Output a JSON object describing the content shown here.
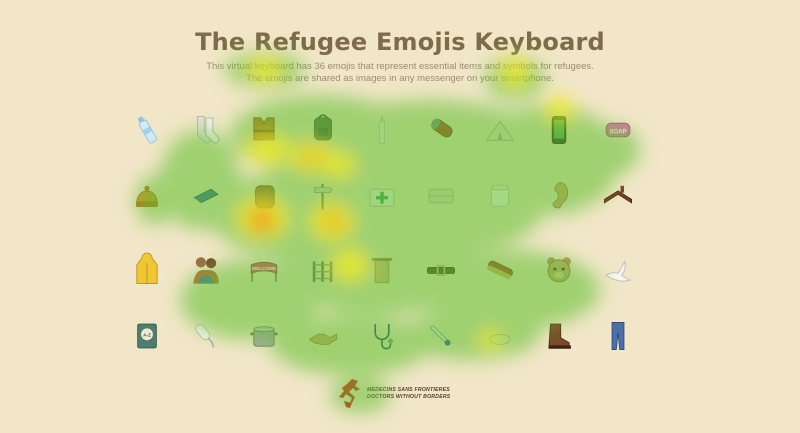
{
  "page": {
    "title": "The Refugee Emojis Keyboard",
    "intro_line1": "This virtual keyboard has 36 emojis that represent essential items and symbols for refugees.",
    "intro_line2": "The emojis are shared as images in any messenger on your smartphone."
  },
  "emojis": [
    {
      "icon": "water-bottle-icon"
    },
    {
      "icon": "socks-icon"
    },
    {
      "icon": "life-jacket-icon"
    },
    {
      "icon": "backpack-icon"
    },
    {
      "icon": "candle-icon"
    },
    {
      "icon": "sleeping-bag-icon"
    },
    {
      "icon": "tent-icon"
    },
    {
      "icon": "mobile-phone-icon"
    },
    {
      "icon": "soap-icon"
    },
    {
      "icon": "wool-hat-icon"
    },
    {
      "icon": "book-icon"
    },
    {
      "icon": "bread-icon"
    },
    {
      "icon": "signpost-icon"
    },
    {
      "icon": "first-aid-kit-icon"
    },
    {
      "icon": "blanket-icon"
    },
    {
      "icon": "toilet-paper-icon"
    },
    {
      "icon": "ear-icon"
    },
    {
      "icon": "roof-icon"
    },
    {
      "icon": "raincoat-icon"
    },
    {
      "icon": "family-hug-icon"
    },
    {
      "icon": "welcome-banner-icon"
    },
    {
      "icon": "fence-icon"
    },
    {
      "icon": "towel-icon"
    },
    {
      "icon": "belt-icon"
    },
    {
      "icon": "sausage-icon"
    },
    {
      "icon": "teddy-bear-icon"
    },
    {
      "icon": "dove-icon"
    },
    {
      "icon": "dictionary-icon"
    },
    {
      "icon": "tampon-icon"
    },
    {
      "icon": "cooking-pot-icon"
    },
    {
      "icon": "shaking-hands-icon"
    },
    {
      "icon": "stethoscope-icon"
    },
    {
      "icon": "thermometer-icon"
    },
    {
      "icon": "medicine-bowl-icon"
    },
    {
      "icon": "boot-icon"
    },
    {
      "icon": "jeans-icon"
    }
  ],
  "labels": {
    "welcome_banner": "WELCOME",
    "soap": "SOAP",
    "dictionary": "A-Z"
  },
  "footer": {
    "org_line1": "MEDECINS SANS FRONTIERES",
    "org_line2": "DOCTORS WITHOUT BORDERS"
  },
  "colors": {
    "background": "#f1e6c8",
    "title": "#7d6b4a",
    "msf_red": "#d42a1f"
  }
}
